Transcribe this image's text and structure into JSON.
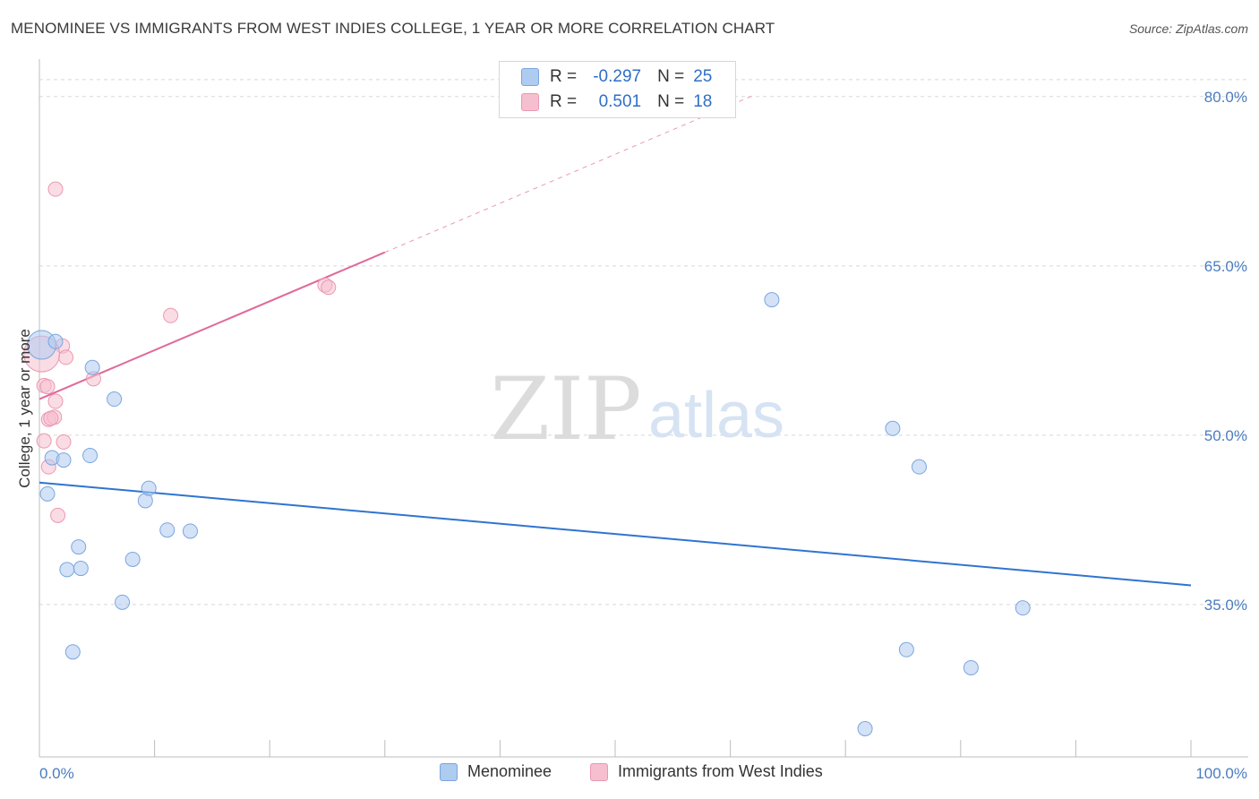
{
  "title": "MENOMINEE VS IMMIGRANTS FROM WEST INDIES COLLEGE, 1 YEAR OR MORE CORRELATION CHART",
  "source": "Source: ZipAtlas.com",
  "watermark": {
    "zip": "ZIP",
    "atlas": "atlas"
  },
  "legend": {
    "r_label": "R =",
    "n_label": "N =",
    "series": [
      {
        "r": "-0.297",
        "n": "25"
      },
      {
        "r": "0.501",
        "n": "18"
      }
    ]
  },
  "colors": {
    "blue_fill": "#aecbf0",
    "blue_stroke": "#7aa6df",
    "blue_line": "#2f74d0",
    "pink_fill": "#f6bfd0",
    "pink_stroke": "#ec97b2",
    "pink_line": "#e0699a",
    "grid": "#d8d8d8",
    "tick_text": "#4a7cc0"
  },
  "chart_data": {
    "type": "scatter",
    "title": "MENOMINEE VS IMMIGRANTS FROM WEST INDIES COLLEGE, 1 YEAR OR MORE CORRELATION CHART",
    "xlabel": "",
    "ylabel": "College, 1 year or more",
    "xlim": [
      0,
      100
    ],
    "ylim": [
      21.5,
      83
    ],
    "y_ticks": [
      35.0,
      50.0,
      65.0,
      80.0
    ],
    "y_tick_labels": [
      "35.0%",
      "50.0%",
      "65.0%",
      "80.0%"
    ],
    "x_tick_labels": [
      "0.0%",
      "100.0%"
    ],
    "grid": true,
    "legend_position": "top-center",
    "series": [
      {
        "name": "Menominee",
        "points": [
          [
            0.2,
            58.0
          ],
          [
            1.4,
            58.3
          ],
          [
            4.6,
            56.0
          ],
          [
            6.5,
            53.2
          ],
          [
            0.7,
            44.8
          ],
          [
            1.1,
            48.0
          ],
          [
            2.1,
            47.8
          ],
          [
            4.4,
            48.2
          ],
          [
            9.2,
            44.2
          ],
          [
            9.5,
            45.3
          ],
          [
            3.4,
            40.1
          ],
          [
            2.4,
            38.1
          ],
          [
            3.6,
            38.2
          ],
          [
            8.1,
            39.0
          ],
          [
            11.1,
            41.6
          ],
          [
            13.1,
            41.5
          ],
          [
            7.2,
            35.2
          ],
          [
            2.9,
            30.8
          ],
          [
            63.6,
            62.0
          ],
          [
            74.1,
            50.6
          ],
          [
            76.4,
            47.2
          ],
          [
            85.4,
            34.7
          ],
          [
            75.3,
            31.0
          ],
          [
            80.9,
            29.4
          ],
          [
            71.7,
            24.0
          ]
        ],
        "trend": {
          "x": [
            0,
            100
          ],
          "y": [
            45.8,
            36.7
          ]
        }
      },
      {
        "name": "Immigrants from West Indies",
        "points": [
          [
            1.4,
            71.8
          ],
          [
            11.4,
            60.6
          ],
          [
            24.8,
            63.3
          ],
          [
            25.1,
            63.1
          ],
          [
            2.0,
            57.9
          ],
          [
            0.4,
            54.4
          ],
          [
            0.7,
            54.3
          ],
          [
            1.4,
            53.0
          ],
          [
            4.7,
            55.0
          ],
          [
            0.8,
            51.4
          ],
          [
            1.3,
            51.6
          ],
          [
            0.4,
            49.5
          ],
          [
            2.1,
            49.4
          ],
          [
            0.8,
            47.2
          ],
          [
            1.6,
            42.9
          ],
          [
            2.3,
            56.9
          ],
          [
            0.2,
            57.2
          ],
          [
            1.0,
            51.5
          ]
        ],
        "trend": {
          "x": [
            0,
            30
          ],
          "y": [
            53.2,
            66.2
          ]
        },
        "trend_extension": {
          "x": [
            30,
            62
          ],
          "y": [
            66.2,
            80.1
          ]
        }
      }
    ]
  }
}
